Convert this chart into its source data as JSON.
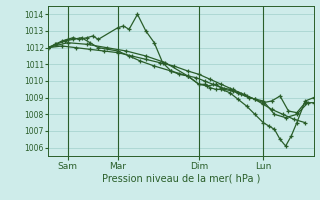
{
  "title": "Pression niveau de la mer( hPa )",
  "background_color": "#ceecea",
  "grid_color": "#add8d4",
  "line_color": "#2a5e2a",
  "ylim": [
    1005.5,
    1014.5
  ],
  "yticks": [
    1006,
    1007,
    1008,
    1009,
    1010,
    1011,
    1012,
    1013,
    1014
  ],
  "x_ticks_labels": [
    "Sam",
    "Mar",
    "Dim",
    "Lun"
  ],
  "x_ticks_pos": [
    14,
    50,
    108,
    154
  ],
  "xlim": [
    0,
    190
  ],
  "x_vlines": [
    14,
    50,
    108,
    154
  ],
  "series": [
    {
      "x": [
        0,
        5,
        10,
        14,
        18,
        22,
        28,
        32,
        36,
        50,
        54,
        58,
        64,
        70,
        76,
        82,
        88,
        94,
        100,
        106,
        112,
        118,
        124,
        130,
        136,
        142,
        148,
        154,
        160,
        166,
        172,
        178,
        184,
        190
      ],
      "y": [
        1012.0,
        1012.2,
        1012.4,
        1012.5,
        1012.6,
        1012.5,
        1012.6,
        1012.7,
        1012.5,
        1013.2,
        1013.3,
        1013.1,
        1014.0,
        1013.0,
        1012.3,
        1011.1,
        1010.6,
        1010.4,
        1010.3,
        1010.2,
        1010.0,
        1009.8,
        1009.6,
        1009.5,
        1009.3,
        1009.1,
        1008.9,
        1008.7,
        1008.8,
        1009.1,
        1008.2,
        1008.1,
        1008.7,
        1008.7
      ]
    },
    {
      "x": [
        0,
        6,
        12,
        18,
        24,
        30,
        36,
        50,
        58,
        66,
        76,
        88,
        100,
        108,
        114,
        120,
        126,
        132,
        138,
        144,
        154,
        162,
        170,
        178,
        186
      ],
      "y": [
        1012.0,
        1012.2,
        1012.4,
        1012.5,
        1012.6,
        1012.3,
        1012.0,
        1011.8,
        1011.5,
        1011.2,
        1010.9,
        1010.6,
        1010.3,
        1009.8,
        1009.7,
        1009.8,
        1009.5,
        1009.4,
        1009.2,
        1009.0,
        1008.8,
        1008.0,
        1007.8,
        1008.0,
        1008.7
      ]
    },
    {
      "x": [
        0,
        10,
        20,
        30,
        40,
        50,
        60,
        70,
        80,
        90,
        100,
        108,
        116,
        124,
        132,
        140,
        148,
        154,
        160,
        168,
        176,
        184
      ],
      "y": [
        1012.0,
        1012.1,
        1012.0,
        1011.9,
        1011.8,
        1011.7,
        1011.5,
        1011.3,
        1011.1,
        1010.9,
        1010.6,
        1010.4,
        1010.1,
        1009.8,
        1009.5,
        1009.2,
        1008.9,
        1008.6,
        1008.3,
        1008.0,
        1007.7,
        1007.5
      ]
    },
    {
      "x": [
        0,
        14,
        28,
        42,
        56,
        70,
        84,
        100,
        108,
        112,
        116,
        120,
        124,
        130,
        136,
        142,
        148,
        154,
        158,
        162,
        166,
        170,
        174,
        178,
        184,
        190
      ],
      "y": [
        1012.0,
        1012.3,
        1012.2,
        1012.0,
        1011.8,
        1011.5,
        1011.1,
        1010.3,
        1009.8,
        1009.8,
        1009.6,
        1009.5,
        1009.5,
        1009.3,
        1008.9,
        1008.5,
        1008.0,
        1007.5,
        1007.3,
        1007.1,
        1006.5,
        1006.1,
        1006.7,
        1007.5,
        1008.8,
        1009.0
      ]
    }
  ]
}
